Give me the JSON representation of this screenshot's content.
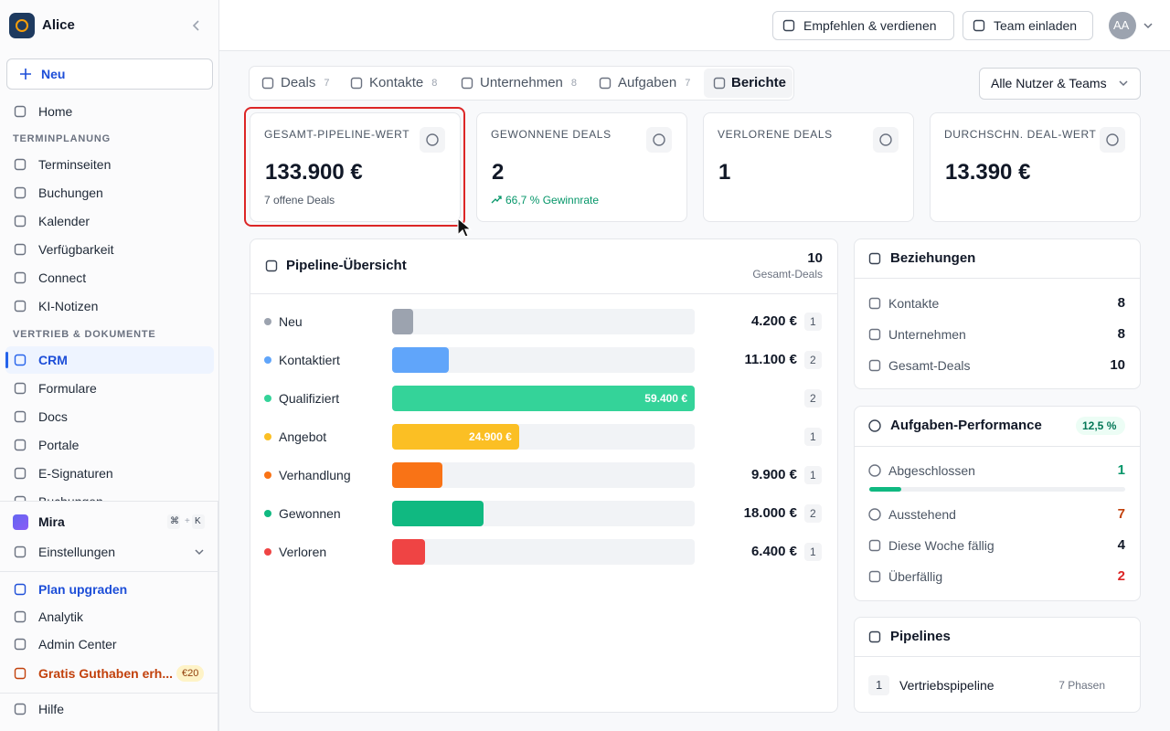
{
  "sidebar": {
    "workspace": "Alice",
    "new_button": "Neu",
    "items": [
      "Home"
    ],
    "sections": [
      {
        "title": "TERMINPLANUNG",
        "items": [
          "Terminseiten",
          "Buchungen",
          "Kalender",
          "Verfügbarkeit",
          "Connect",
          "KI-Notizen"
        ]
      },
      {
        "title": "VERTRIEB & DOKUMENTE",
        "items": [
          "CRM",
          "Formulare",
          "Docs",
          "Portale",
          "E-Signaturen",
          "Buchungen"
        ],
        "active": 0
      }
    ],
    "assistant": {
      "label": "Mira",
      "shortcut": [
        "⌘",
        "K"
      ],
      "separator": "+"
    },
    "settings": "Einstellungen",
    "footer": [
      {
        "label": "Plan upgraden",
        "color": "#1d4ed8"
      },
      {
        "label": "Analytik"
      },
      {
        "label": "Admin Center"
      },
      {
        "label": "Gratis Guthaben erh...",
        "color": "#c2410c",
        "badge": "€20"
      }
    ],
    "help": "Hilfe"
  },
  "topbar": {
    "buttons": [
      "Empfehlen & verdienen",
      "Team einladen"
    ],
    "avatar": "AA"
  },
  "tabs": {
    "items": [
      {
        "label": "Deals",
        "count": 7
      },
      {
        "label": "Kontakte",
        "count": 8
      },
      {
        "label": "Unternehmen",
        "count": 8
      },
      {
        "label": "Aufgaben",
        "count": 7
      },
      {
        "label": "Berichte"
      }
    ],
    "active": 4,
    "filter": "Alle Nutzer & Teams"
  },
  "kpis": [
    {
      "title": "GESAMT-PIPELINE-WERT",
      "value": "133.900 €",
      "note": "7 offene Deals"
    },
    {
      "title": "GEWONNENE DEALS",
      "value": 2,
      "note": "66,7 % Gewinnrate",
      "note_color": "#059669"
    },
    {
      "title": "VERLORENE DEALS",
      "value": 1
    },
    {
      "title": "DURCHSCHN. DEAL-WERT",
      "value": "13.390 €"
    }
  ],
  "pipeline": {
    "title": "Pipeline-Übersicht",
    "total": 10,
    "total_label": "Gesamt-Deals",
    "stages": [
      {
        "name": "Neu",
        "color": "#9ca3af",
        "amount": 4200,
        "amount_label": "4.200 €",
        "count": 1
      },
      {
        "name": "Kontaktiert",
        "color": "#60a5fa",
        "amount": 11100,
        "amount_label": "11.100 €",
        "count": 2
      },
      {
        "name": "Qualifiziert",
        "color": "#34d399",
        "amount": 59400,
        "amount_label": "59.400 €",
        "count": 2
      },
      {
        "name": "Angebot",
        "color": "#fbbf24",
        "amount": 24900,
        "amount_label": "24.900 €",
        "count": 1
      },
      {
        "name": "Verhandlung",
        "color": "#f97316",
        "amount": 9900,
        "amount_label": "9.900 €",
        "count": 1
      },
      {
        "name": "Gewonnen",
        "color": "#10b981",
        "amount": 18000,
        "amount_label": "18.000 €",
        "count": 2
      },
      {
        "name": "Verloren",
        "color": "#ef4444",
        "amount": 6400,
        "amount_label": "6.400 €",
        "count": 1
      }
    ]
  },
  "relations": {
    "title": "Beziehungen",
    "rows": [
      {
        "label": "Kontakte",
        "value": 8
      },
      {
        "label": "Unternehmen",
        "value": 8
      },
      {
        "label": "Gesamt-Deals",
        "value": 10
      }
    ]
  },
  "task_performance": {
    "title": "Aufgaben-Performance",
    "badge": "12,5 %",
    "rows": [
      {
        "label": "Abgeschlossen",
        "value": 1,
        "color": "#059669"
      },
      {
        "label": "Ausstehend",
        "value": 7,
        "color": "#c2410c"
      },
      {
        "label": "Diese Woche fällig",
        "value": 4,
        "color": "#111827"
      },
      {
        "label": "Überfällig",
        "value": 2,
        "color": "#dc2626"
      }
    ]
  },
  "pipelines": {
    "title": "Pipelines",
    "items": [
      {
        "index": 1,
        "name": "Vertriebspipeline",
        "phases": "7 Phasen"
      }
    ]
  }
}
